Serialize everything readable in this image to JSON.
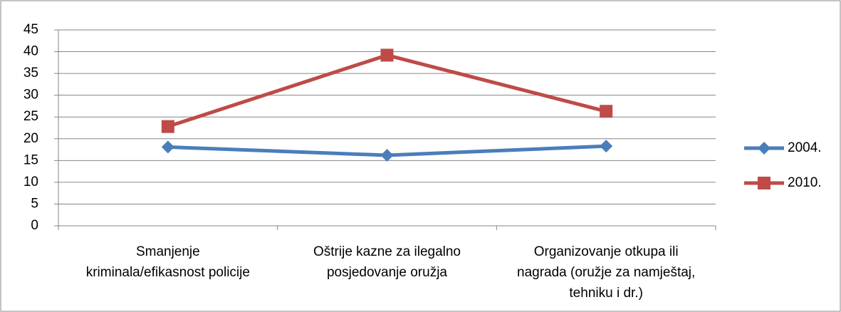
{
  "chart_data": {
    "type": "line",
    "categories": [
      "Smanjenje kriminala/efikasnost policije",
      "Oštrije kazne za ilegalno posjedovanje oružja",
      "Organizovanje otkupa ili nagrada (oružje za namještaj, tehniku i dr.)"
    ],
    "series": [
      {
        "name": "2004.",
        "color": "#4a7ebb",
        "marker": "diamond",
        "values": [
          18.1,
          16.2,
          18.3
        ]
      },
      {
        "name": "2010.",
        "color": "#be4b48",
        "marker": "square",
        "values": [
          22.8,
          39.2,
          26.3
        ]
      }
    ],
    "ylim": [
      0,
      45
    ],
    "yticks": [
      0,
      5,
      10,
      15,
      20,
      25,
      30,
      35,
      40,
      45
    ],
    "grid": true,
    "legend": "right"
  }
}
